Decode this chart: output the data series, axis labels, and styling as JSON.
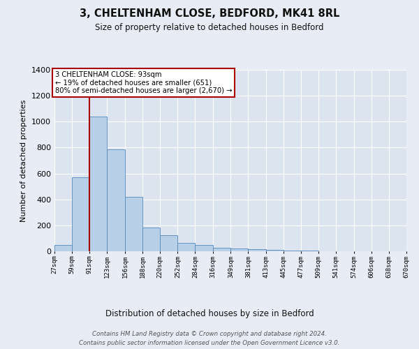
{
  "title": "3, CHELTENHAM CLOSE, BEDFORD, MK41 8RL",
  "subtitle": "Size of property relative to detached houses in Bedford",
  "xlabel": "Distribution of detached houses by size in Bedford",
  "ylabel": "Number of detached properties",
  "bar_values": [
    47,
    572,
    1040,
    785,
    420,
    185,
    125,
    65,
    50,
    28,
    22,
    15,
    10,
    5,
    3,
    2,
    2,
    1,
    1,
    0
  ],
  "bin_edges": [
    27,
    59,
    91,
    123,
    156,
    188,
    220,
    252,
    284,
    316,
    349,
    381,
    413,
    445,
    477,
    509,
    541,
    574,
    606,
    638,
    670
  ],
  "bar_color": "#b8cfe8",
  "bar_edge_color": "#5588bb",
  "background_color": "#e8ecf4",
  "plot_bg_color": "#dce4f0",
  "grid_color": "#ffffff",
  "vline_x": 91,
  "vline_color": "#aa0000",
  "annotation_text": "3 CHELTENHAM CLOSE: 93sqm\n← 19% of detached houses are smaller (651)\n80% of semi-detached houses are larger (2,670) →",
  "annotation_box_color": "#ffffff",
  "annotation_box_edge": "#aa0000",
  "ylim": [
    0,
    1400
  ],
  "yticks": [
    0,
    200,
    400,
    600,
    800,
    1000,
    1200,
    1400
  ],
  "footer_line1": "Contains HM Land Registry data © Crown copyright and database right 2024.",
  "footer_line2": "Contains public sector information licensed under the Open Government Licence v3.0."
}
